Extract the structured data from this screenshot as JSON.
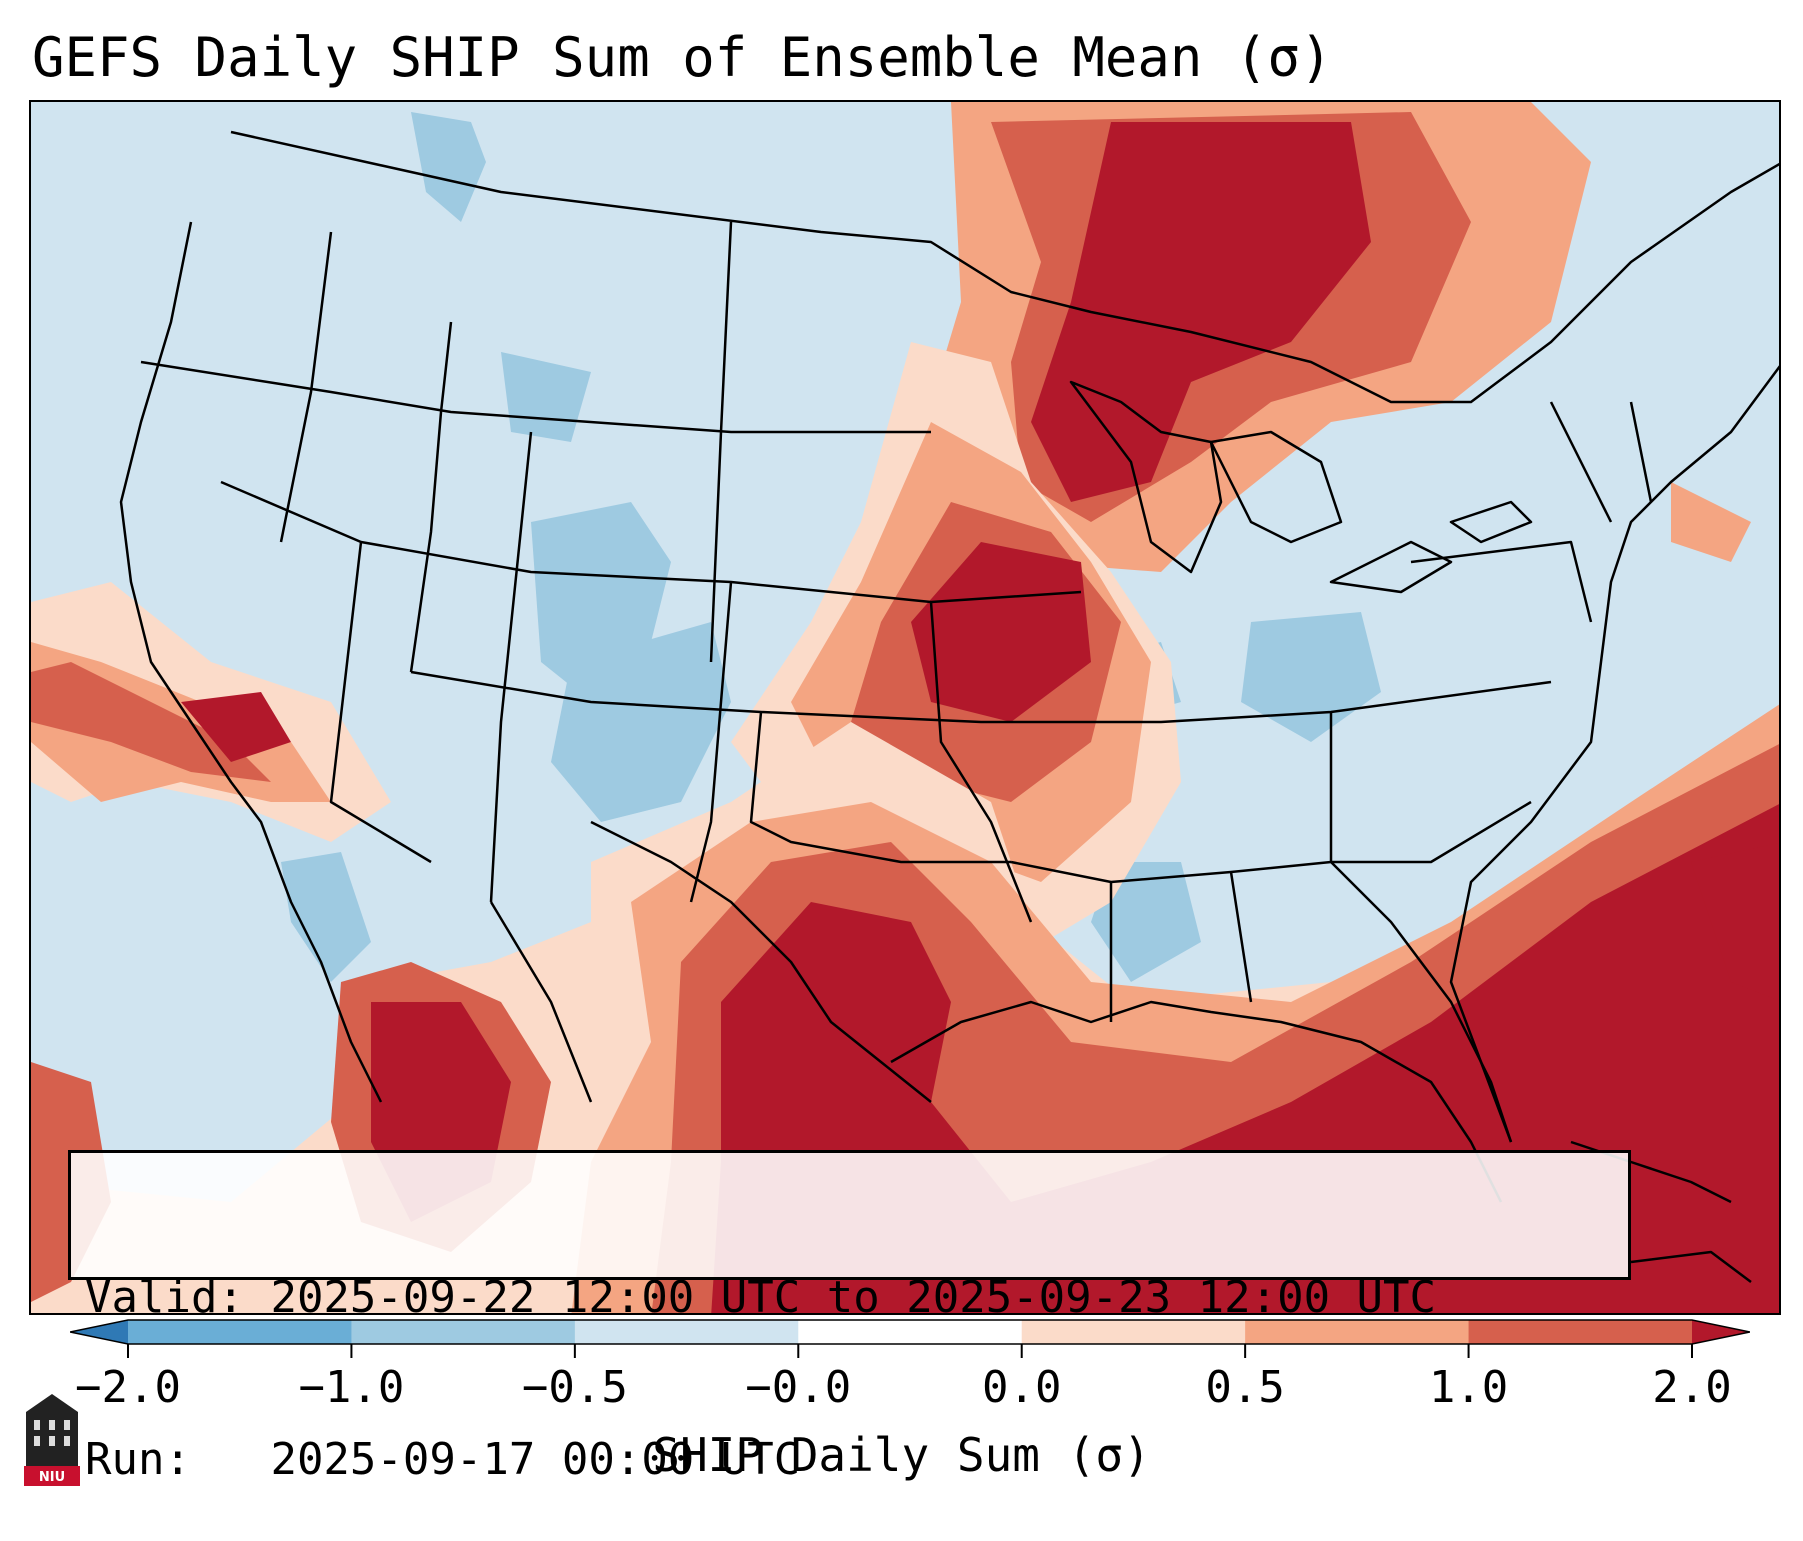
{
  "title": "GEFS Daily SHIP Sum of Ensemble Mean (σ)",
  "info": {
    "valid_label": "Valid:",
    "valid_value": "2025-09-22 12:00 UTC to 2025-09-23 12:00 UTC",
    "run_label": "Run:",
    "run_value": "2025-09-17 00:00 UTC"
  },
  "colorbar": {
    "label": "SHIP Daily Sum (σ)",
    "tick_labels": [
      "−2.0",
      "−1.0",
      "−0.5",
      "−0.0",
      "0.0",
      "0.5",
      "1.0",
      "2.0"
    ],
    "colors": [
      "#2f79b5",
      "#6aaed6",
      "#9ecae1",
      "#d0e4f0",
      "#fbdbc9",
      "#f4a582",
      "#d6604d",
      "#b2182b"
    ],
    "extend": "both"
  },
  "map": {
    "region": "CONUS",
    "ocean_color": "#d0e4f0",
    "legend_colors": {
      "strong_negative": "#2f79b5",
      "moderate_negative": "#6aaed6",
      "weak_negative": "#9ecae1",
      "neutral_negative": "#d0e4f0",
      "neutral_positive": "#fbdbc9",
      "weak_positive": "#f4a582",
      "moderate_positive": "#d6604d",
      "strong_positive": "#b2182b"
    }
  },
  "logo": {
    "text": "NIU",
    "icon": "university-building-icon"
  }
}
